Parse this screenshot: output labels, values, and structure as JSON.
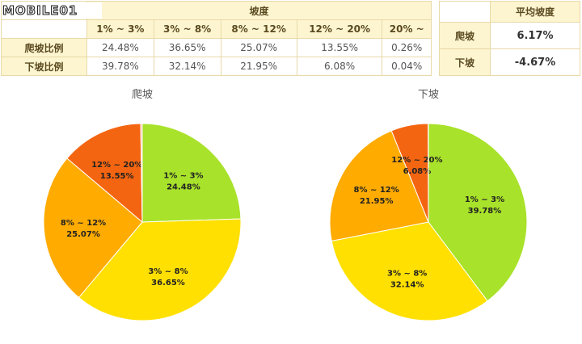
{
  "logo": {
    "text": "MOBILE01"
  },
  "slope_table": {
    "group_header": "坡度",
    "columns": [
      "1% ~ 3%",
      "3% ~ 8%",
      "8% ~ 12%",
      "12% ~ 20%",
      "20% ~"
    ],
    "rows": [
      {
        "label": "爬坡比例",
        "values": [
          "24.48%",
          "36.65%",
          "25.07%",
          "13.55%",
          "0.26%"
        ]
      },
      {
        "label": "下坡比例",
        "values": [
          "39.78%",
          "32.14%",
          "21.95%",
          "6.08%",
          "0.04%"
        ]
      }
    ]
  },
  "avg_table": {
    "header": "平均坡度",
    "rows": [
      {
        "label": "爬坡",
        "value": "6.17%"
      },
      {
        "label": "下坡",
        "value": "-4.67%"
      }
    ]
  },
  "chart_data": [
    {
      "type": "pie",
      "title": "爬坡",
      "categories": [
        "1% ~ 3%",
        "3% ~ 8%",
        "8% ~ 12%",
        "12% ~ 20%",
        "20% ~"
      ],
      "values": [
        24.48,
        36.65,
        25.07,
        13.55,
        0.26
      ],
      "colors": [
        "#a8e22a",
        "#ffe000",
        "#ffab00",
        "#f46511",
        "#f6b396"
      ],
      "labels": [
        "24.48%",
        "36.65%",
        "25.07%",
        "13.55%",
        ""
      ]
    },
    {
      "type": "pie",
      "title": "下坡",
      "categories": [
        "1% ~ 3%",
        "3% ~ 8%",
        "8% ~ 12%",
        "12% ~ 20%",
        "20% ~"
      ],
      "values": [
        39.78,
        32.14,
        21.95,
        6.08,
        0.04
      ],
      "colors": [
        "#a8e22a",
        "#ffe000",
        "#ffab00",
        "#f46511",
        "#f6b396"
      ],
      "labels": [
        "39.78%",
        "32.14%",
        "21.95%",
        "6.08%",
        ""
      ]
    }
  ]
}
